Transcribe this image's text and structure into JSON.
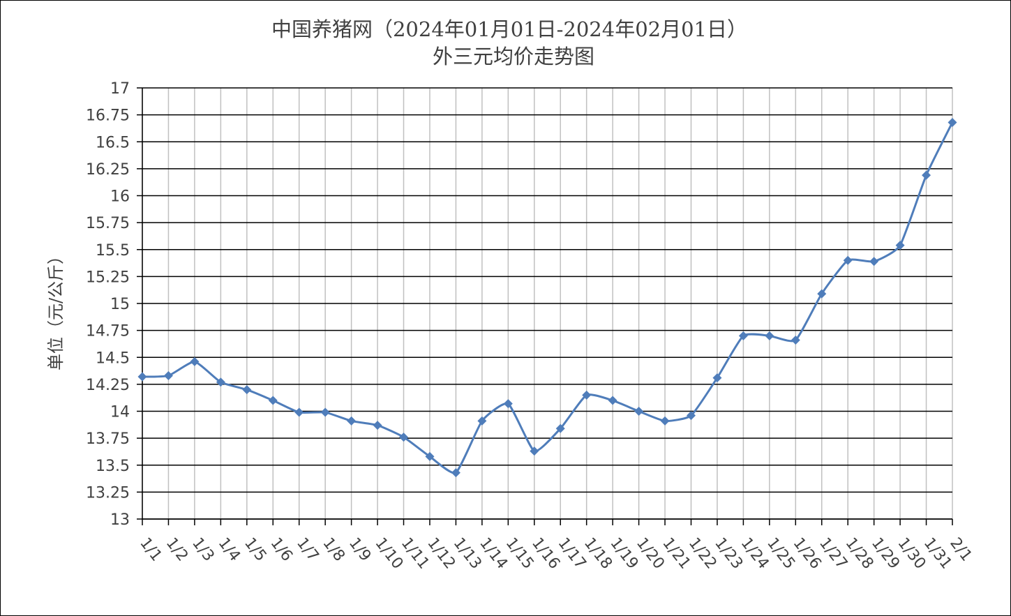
{
  "chart_data": {
    "type": "line",
    "title": "中国养猪网（2024年01月01日-2024年02月01日）",
    "subtitle": "外三元均价走势图",
    "ylabel": "单位（元/公斤）",
    "ylim": [
      13,
      17
    ],
    "yticks": [
      "17",
      "16.75",
      "16.5",
      "16.25",
      "16",
      "15.75",
      "15.5",
      "15.25",
      "15",
      "14.75",
      "14.5",
      "14.25",
      "14",
      "13.75",
      "13.5",
      "13.25",
      "13"
    ],
    "grid": true,
    "line_color": "#4F7DBA",
    "categories": [
      "1/1",
      "1/2",
      "1/3",
      "1/4",
      "1/5",
      "1/6",
      "1/7",
      "1/8",
      "1/9",
      "1/10",
      "1/11",
      "1/12",
      "1/13",
      "1/14",
      "1/15",
      "1/16",
      "1/17",
      "1/18",
      "1/19",
      "1/20",
      "1/21",
      "1/22",
      "1/23",
      "1/24",
      "1/25",
      "1/26",
      "1/27",
      "1/28",
      "1/29",
      "1/30",
      "1/31",
      "2/1"
    ],
    "series": [
      {
        "values": [
          14.32,
          14.33,
          14.46,
          14.27,
          14.2,
          14.1,
          13.99,
          13.99,
          13.91,
          13.87,
          13.76,
          13.58,
          13.43,
          13.91,
          14.07,
          13.63,
          13.84,
          14.15,
          14.1,
          14.0,
          13.91,
          13.96,
          14.31,
          14.7,
          14.7,
          14.66,
          15.09,
          15.4,
          15.39,
          15.54,
          16.19,
          16.68
        ]
      }
    ]
  }
}
